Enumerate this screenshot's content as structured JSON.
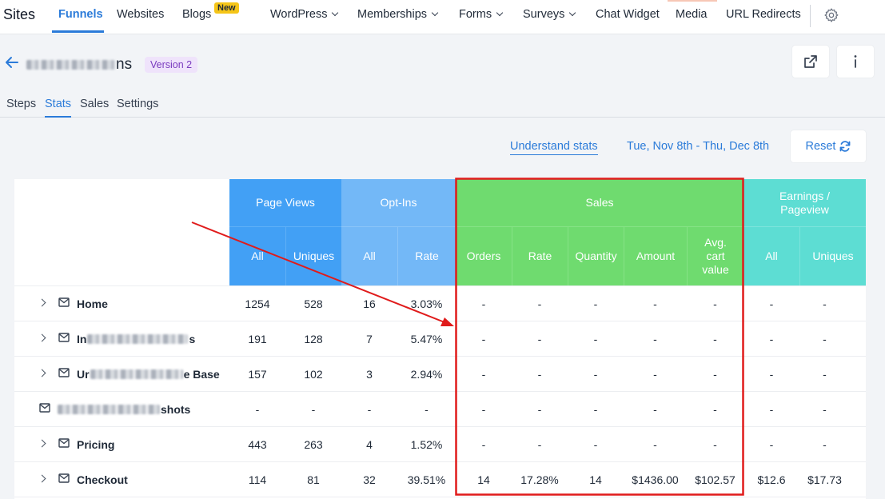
{
  "nav": {
    "brand": "Sites",
    "items": [
      {
        "label": "Funnels"
      },
      {
        "label": "Websites"
      },
      {
        "label": "Blogs"
      },
      {
        "label": "WordPress"
      },
      {
        "label": "Memberships"
      },
      {
        "label": "Forms"
      },
      {
        "label": "Surveys"
      },
      {
        "label": "Chat Widget"
      },
      {
        "label": "Media"
      },
      {
        "label": "URL Redirects"
      }
    ],
    "new_badge": "New"
  },
  "header": {
    "funnel_name_visible": "ns",
    "version": "Version 2"
  },
  "subtabs": [
    "Steps",
    "Stats",
    "Sales",
    "Settings"
  ],
  "toolbar": {
    "understand_label": "Understand stats",
    "date_range": "Tue, Nov 8th - Thu, Dec 8th",
    "reset_label": "Reset"
  },
  "table": {
    "groups": [
      {
        "label": "Page Views",
        "color": "#42a0f5"
      },
      {
        "label": "Opt-Ins",
        "color": "#73b8f7"
      },
      {
        "label": "Sales",
        "color": "#6fdb6f"
      },
      {
        "label": "Earnings / Pageview",
        "color": "#5dddd3"
      }
    ],
    "columns": [
      "All",
      "Uniques",
      "All",
      "Rate",
      "Orders",
      "Rate",
      "Quantity",
      "Amount",
      "Avg. cart value",
      "All",
      "Uniques"
    ],
    "rows": [
      {
        "name_visible": "Home",
        "values": [
          "1254",
          "528",
          "16",
          "3.03%",
          "-",
          "-",
          "-",
          "-",
          "-",
          "-",
          "-"
        ]
      },
      {
        "name_visible": "In",
        "name_suffix": "s",
        "values": [
          "191",
          "128",
          "7",
          "5.47%",
          "-",
          "-",
          "-",
          "-",
          "-",
          "-",
          "-"
        ]
      },
      {
        "name_visible": "Ur",
        "name_suffix": "e Base",
        "values": [
          "157",
          "102",
          "3",
          "2.94%",
          "-",
          "-",
          "-",
          "-",
          "-",
          "-",
          "-"
        ]
      },
      {
        "name_visible": "",
        "name_suffix": "shots",
        "values": [
          "-",
          "-",
          "-",
          "-",
          "-",
          "-",
          "-",
          "-",
          "-",
          "-",
          "-"
        ]
      },
      {
        "name_visible": "Pricing",
        "values": [
          "443",
          "263",
          "4",
          "1.52%",
          "-",
          "-",
          "-",
          "-",
          "-",
          "-",
          "-"
        ]
      },
      {
        "name_visible": "Checkout",
        "values": [
          "114",
          "81",
          "32",
          "39.51%",
          "14",
          "17.28%",
          "14",
          "$1436.00",
          "$102.57",
          "$12.6",
          "$17.73"
        ]
      }
    ]
  },
  "annotation": {
    "color": "#e01b1b"
  }
}
